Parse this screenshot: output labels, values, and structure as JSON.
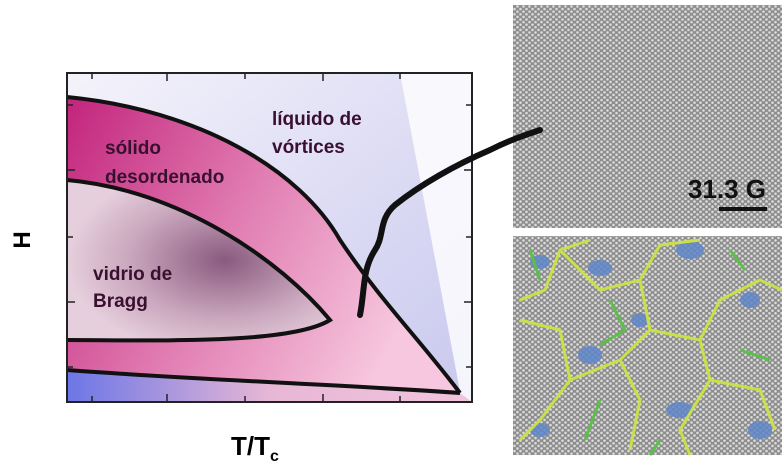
{
  "phase_diagram": {
    "y_label": "H",
    "x_label": {
      "main": "T/T",
      "sub": "c"
    },
    "regions": [
      {
        "lines": [
          "líquido de",
          "vórtices"
        ]
      },
      {
        "lines": [
          "sólido",
          "desordenado"
        ]
      },
      {
        "lines": [
          "vidrio de",
          "Bragg"
        ]
      }
    ]
  },
  "images": {
    "scale_label": "31.3 G"
  }
}
